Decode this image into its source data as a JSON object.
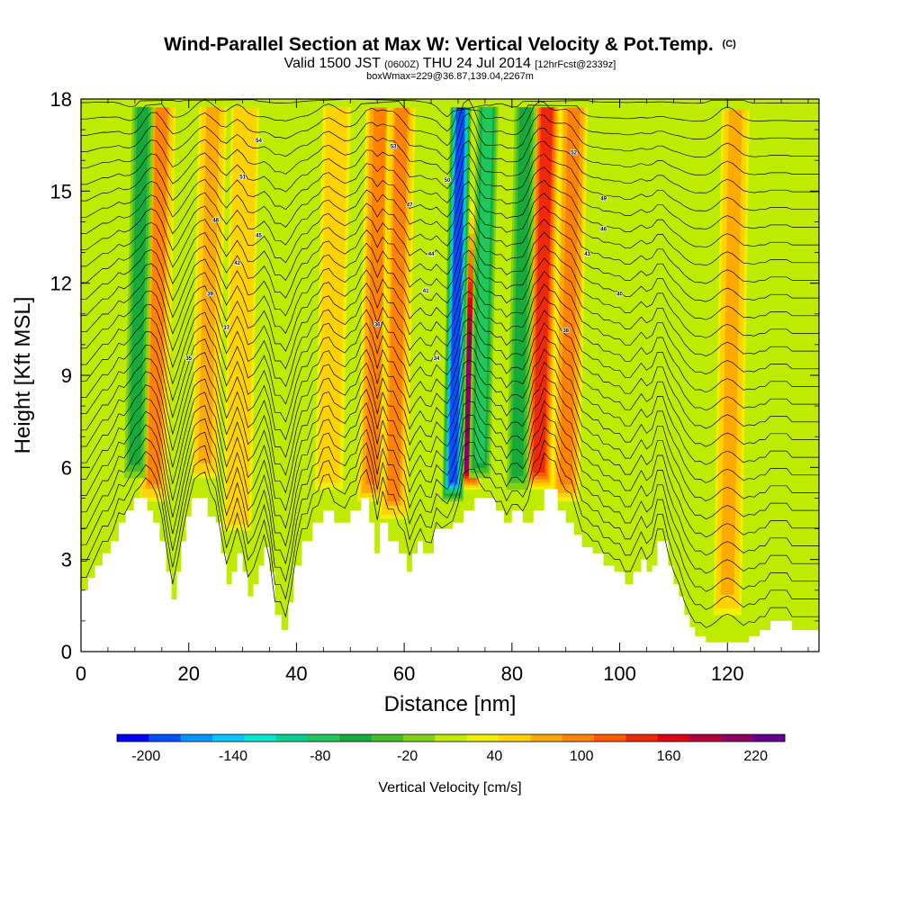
{
  "chart_data": {
    "type": "heatmap",
    "title": "Wind-Parallel Section at Max W: Vertical Velocity & Pot.Temp.",
    "title_mark": "(C)",
    "subtitle_parts": [
      "Valid 1500 JST",
      "(0600Z)",
      "THU 24 Jul 2014",
      "[12hrFcst@2339z]"
    ],
    "subtitle2": "boxWmax=229@36.87,139.04,2267m",
    "xlabel": "Distance [nm]",
    "ylabel": "Height [Kft MSL]",
    "xlim": [
      0,
      137
    ],
    "ylim": [
      0,
      18
    ],
    "x_ticks": [
      "0",
      "20",
      "40",
      "60",
      "80",
      "100",
      "120"
    ],
    "y_ticks": [
      "0",
      "3",
      "6",
      "9",
      "12",
      "15",
      "18"
    ],
    "grid": false,
    "colorbar": {
      "title": "Vertical Velocity [cm/s]",
      "labels": [
        "-200",
        "-140",
        "-80",
        "-20",
        "40",
        "100",
        "160",
        "220"
      ],
      "colors": [
        "#0000ff",
        "#0050ff",
        "#0096ff",
        "#00c8ff",
        "#00e6d2",
        "#00d296",
        "#1ec85a",
        "#14aa3c",
        "#46be28",
        "#82d214",
        "#beeb00",
        "#f0f000",
        "#ffd200",
        "#ffaa00",
        "#ff8200",
        "#ff5a00",
        "#f0280a",
        "#dc0014",
        "#b4003c",
        "#8c0064",
        "#64008c"
      ]
    },
    "updrafts": [
      {
        "x": 13.5,
        "w": 100
      },
      {
        "x": 23,
        "w": 80
      },
      {
        "x": 29,
        "w": 70
      },
      {
        "x": 46,
        "w": 60
      },
      {
        "x": 54,
        "w": 110
      },
      {
        "x": 58,
        "w": 100
      },
      {
        "x": 71.5,
        "w": 229
      },
      {
        "x": 85,
        "w": 150
      },
      {
        "x": 90,
        "w": 110
      },
      {
        "x": 120,
        "w": 80
      }
    ],
    "downdrafts": [
      {
        "x": 10,
        "w": -60
      },
      {
        "x": 69,
        "w": -200
      },
      {
        "x": 74,
        "w": -90
      },
      {
        "x": 81,
        "w": -60
      }
    ],
    "contour_labels": [
      "54",
      "53",
      "52",
      "51",
      "50",
      "49",
      "48",
      "47",
      "46",
      "45",
      "44",
      "43",
      "42",
      "41",
      "40",
      "39",
      "38",
      "37",
      "36",
      "35",
      "34"
    ]
  }
}
